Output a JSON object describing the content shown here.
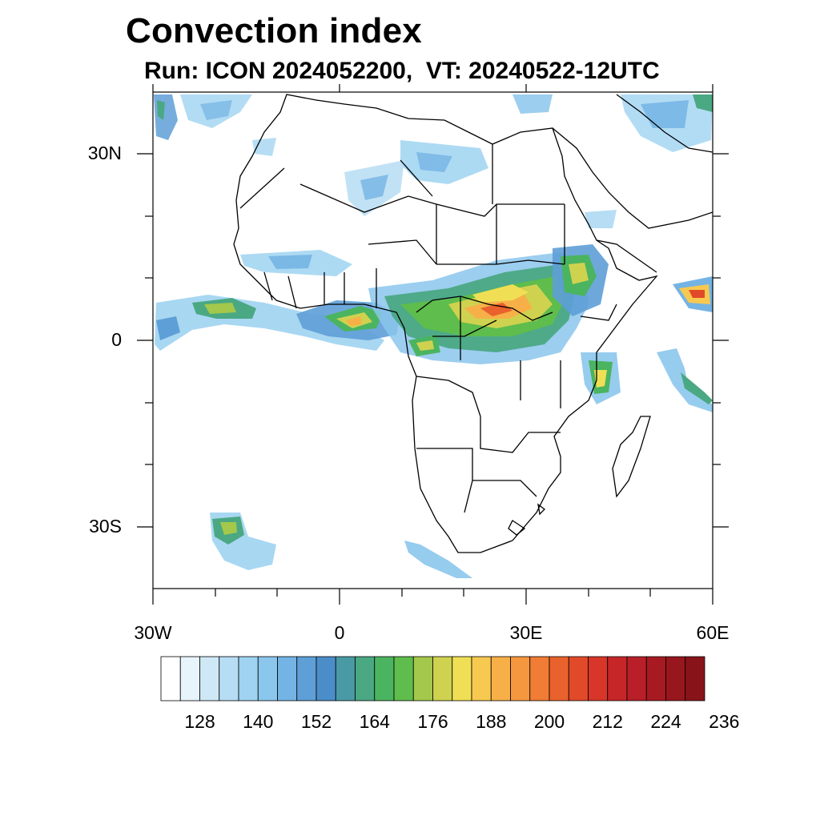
{
  "title": "Convection index",
  "subtitle": "Run: ICON 2024052200,  VT: 20240522-12UTC",
  "axes": {
    "lat_labels": [
      "30N",
      "0",
      "30S"
    ],
    "lon_labels": [
      "30W",
      "0",
      "30E",
      "60E"
    ]
  },
  "colorbar": {
    "colors": [
      "#ffffff",
      "#e8f4fb",
      "#cfe8f6",
      "#b6ddf3",
      "#9fd3f1",
      "#8bc6ec",
      "#74b4e4",
      "#5e9fd7",
      "#4b8dc8",
      "#4a9aa6",
      "#4aa883",
      "#4bb460",
      "#5ebd4c",
      "#a3c84b",
      "#cfd24f",
      "#f0df55",
      "#f8c950",
      "#f7b048",
      "#f5973f",
      "#f07c35",
      "#e9612c",
      "#e14a29",
      "#d73628",
      "#c72628",
      "#b81f28",
      "#a81a22",
      "#98161d",
      "#88141a"
    ],
    "labels": [
      "128",
      "140",
      "152",
      "164",
      "176",
      "188",
      "200",
      "212",
      "224",
      "236"
    ]
  }
}
